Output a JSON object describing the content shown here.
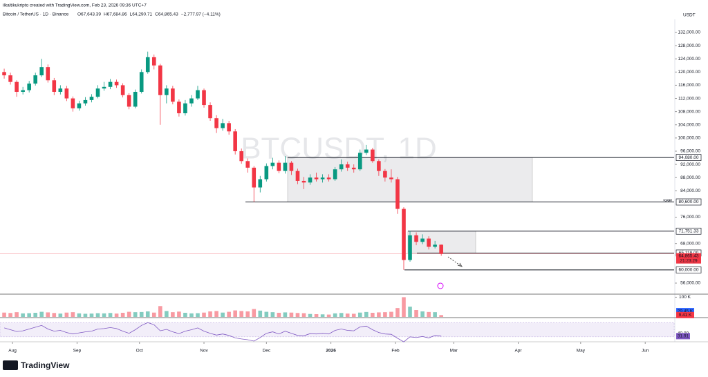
{
  "header": "ilkaltikukripto created with TradingView.com, Feb 23, 2026 09:36 UTC+7",
  "logo": "TradingView",
  "chart_data": {
    "type": "candlestick",
    "title": "Bitcoin / TetherUS · 1D · Binance",
    "ohlc_labels": [
      "O67,643.39",
      "H67,684.86",
      "L64,290.71",
      "C64,865.43",
      "−2,777.97 (−4.11%)"
    ],
    "watermark": "BTCUSDT, 1D",
    "currency": "USDT",
    "up_color": "#089981",
    "down_color": "#f23645",
    "open": [
      120000,
      119000,
      117000,
      114000,
      114500,
      116500,
      119000,
      121500,
      117500,
      114000,
      115000,
      112000,
      109000,
      110500,
      111500,
      112500,
      115000,
      115500,
      117000,
      116000,
      113000,
      109500,
      114000,
      120000,
      124500,
      122000,
      113000,
      115000,
      111000,
      107500,
      110500,
      112000,
      114500,
      110000,
      106000,
      103000,
      104500,
      102000,
      96000,
      93000,
      91000,
      85000,
      87500,
      91500,
      92500,
      90000,
      92500,
      90000,
      87000,
      86500,
      88000,
      87500,
      88000,
      87500,
      90500,
      92000,
      91000,
      90500,
      95500,
      96500,
      93000,
      90000,
      88000,
      87500,
      78500,
      63000,
      70500,
      68500,
      69500,
      67000,
      67643.39
    ],
    "high": [
      121000,
      119800,
      117500,
      115500,
      117300,
      119800,
      124000,
      122300,
      118200,
      116000,
      115800,
      112600,
      111300,
      112400,
      113300,
      116000,
      117000,
      117900,
      117700,
      116600,
      113600,
      114700,
      120800,
      126200,
      125300,
      122500,
      116000,
      115800,
      111700,
      111500,
      113000,
      115800,
      115000,
      110800,
      106900,
      105800,
      105200,
      102700,
      96800,
      93800,
      91500,
      88500,
      92300,
      94000,
      93200,
      94500,
      93000,
      90700,
      88200,
      89000,
      89500,
      89000,
      89000,
      91200,
      93500,
      92800,
      92000,
      96500,
      97900,
      97000,
      93500,
      90600,
      90500,
      88200,
      79000,
      71800,
      71400,
      70800,
      70200,
      68800,
      67684.86
    ],
    "low": [
      118000,
      116200,
      112500,
      113200,
      113800,
      115900,
      118500,
      116800,
      113000,
      113200,
      111200,
      108000,
      108300,
      109800,
      110800,
      112000,
      114300,
      114800,
      115200,
      112300,
      108700,
      109000,
      113500,
      119500,
      120800,
      104000,
      110500,
      110200,
      106500,
      106800,
      109500,
      111500,
      109200,
      105200,
      101500,
      102200,
      101000,
      95000,
      92200,
      89500,
      80600,
      83500,
      86800,
      90500,
      89300,
      89200,
      88800,
      86000,
      84500,
      85800,
      86800,
      86500,
      86800,
      87000,
      89800,
      90000,
      89500,
      90000,
      94800,
      92500,
      88500,
      86800,
      86500,
      77000,
      60000,
      62500,
      67500,
      67800,
      66200,
      66500,
      64290.71
    ],
    "close": [
      119000,
      117000,
      114000,
      114500,
      116500,
      119000,
      121500,
      117500,
      114000,
      115000,
      112000,
      109000,
      110500,
      111500,
      112500,
      115000,
      115500,
      117000,
      116000,
      113000,
      109500,
      114000,
      120000,
      124500,
      122000,
      113000,
      115000,
      111000,
      107500,
      110500,
      112000,
      114500,
      110000,
      106000,
      103000,
      104500,
      102000,
      96000,
      93000,
      91000,
      85000,
      87500,
      91500,
      92500,
      90000,
      92500,
      90000,
      87000,
      86500,
      88000,
      87500,
      88000,
      87500,
      90500,
      92000,
      91000,
      90500,
      95500,
      96500,
      93000,
      90000,
      88000,
      87500,
      78500,
      63000,
      70500,
      68500,
      69500,
      67000,
      67643.39,
      64865.43
    ],
    "xlim": [
      -0.67,
      107.3
    ],
    "xticks": [
      {
        "value": 1.33,
        "label": "Aug"
      },
      {
        "value": 11.67,
        "label": "Sep"
      },
      {
        "value": 21.67,
        "label": "Oct"
      },
      {
        "value": 32,
        "label": "Nov"
      },
      {
        "value": 42,
        "label": "Dec"
      },
      {
        "value": 52.33,
        "label": "2026"
      },
      {
        "value": 62.67,
        "label": "Feb"
      },
      {
        "value": 72,
        "label": "Mar"
      },
      {
        "value": 82.33,
        "label": "Apr"
      },
      {
        "value": 92.33,
        "label": "May"
      },
      {
        "value": 102.67,
        "label": "Jun"
      }
    ],
    "ylim": [
      52860,
      135980
    ],
    "yticks": [
      {
        "value": 132000,
        "label": "132,000.00"
      },
      {
        "value": 128000,
        "label": "128,000.00"
      },
      {
        "value": 124000,
        "label": "124,000.00"
      },
      {
        "value": 120000,
        "label": "120,000.00"
      },
      {
        "value": 116000,
        "label": "116,000.00"
      },
      {
        "value": 112000,
        "label": "112,000.00"
      },
      {
        "value": 108000,
        "label": "108,000.00"
      },
      {
        "value": 104000,
        "label": "104,000.00"
      },
      {
        "value": 100000,
        "label": "100,000.00"
      },
      {
        "value": 96000,
        "label": "96,000.00"
      },
      {
        "value": 92000,
        "label": "92,000.00"
      },
      {
        "value": 88000,
        "label": "88,000.00"
      },
      {
        "value": 84000,
        "label": "84,000.00"
      },
      {
        "value": 76000,
        "label": "76,000.00"
      },
      {
        "value": 68000,
        "label": "68,000.00"
      },
      {
        "value": 56000,
        "label": "56,000.00"
      }
    ],
    "levels": [
      {
        "value": 94080,
        "label": "94,080.00"
      },
      {
        "value": 80600,
        "label": "80,600.00",
        "note": "SBR"
      },
      {
        "value": 71751.33,
        "label": "71,751.33"
      },
      {
        "value": 65118,
        "label": "65,118.00"
      },
      {
        "value": 60000,
        "label": "60,000.00"
      }
    ],
    "current_price": {
      "value": 64865.43,
      "label": "64,865.43",
      "countdown": "21:23:29",
      "color": "#f23645"
    },
    "volume": {
      "values": [
        22000,
        20000,
        24000,
        18000,
        19000,
        21000,
        26000,
        23000,
        20000,
        17000,
        22000,
        24000,
        18000,
        16000,
        17000,
        19000,
        18000,
        20000,
        17000,
        21000,
        26000,
        24000,
        25000,
        28000,
        22000,
        55000,
        30000,
        24000,
        27000,
        21000,
        18000,
        19000,
        22000,
        28000,
        30000,
        22000,
        26000,
        33000,
        30000,
        28000,
        40000,
        32000,
        26000,
        24000,
        21000,
        23000,
        22000,
        20000,
        19000,
        15000,
        14000,
        13000,
        12000,
        18000,
        20000,
        17000,
        16000,
        22000,
        25000,
        21000,
        23000,
        24000,
        26000,
        45000,
        100000,
        52000,
        35000,
        28000,
        25000,
        24000,
        9410
      ],
      "ylim": [
        0,
        105000
      ],
      "yticks": [
        {
          "value": 100000,
          "label": "100 K"
        }
      ],
      "labels": [
        {
          "value": 29450,
          "label": "29.45 K",
          "color": "#2962ff"
        },
        {
          "value": 9410,
          "label": "9.41 K",
          "color": "#f23645"
        }
      ]
    },
    "rsi": {
      "values": [
        55,
        50,
        45,
        47,
        52,
        57,
        62,
        52,
        46,
        48,
        42,
        38,
        41,
        44,
        46,
        52,
        53,
        56,
        53,
        46,
        40,
        50,
        62,
        70,
        64,
        47,
        51,
        44,
        39,
        46,
        50,
        55,
        46,
        40,
        35,
        38,
        34,
        27,
        24,
        22,
        18,
        28,
        40,
        44,
        38,
        46,
        40,
        34,
        33,
        39,
        38,
        40,
        38,
        48,
        52,
        48,
        47,
        58,
        60,
        50,
        42,
        38,
        37,
        26,
        16,
        30,
        28,
        31,
        27,
        34,
        31.91
      ],
      "ylim": [
        20,
        80
      ],
      "band": [
        30,
        70
      ],
      "color": "#7e57c2",
      "labels": [
        {
          "value": 40,
          "label": "40.00"
        },
        {
          "value": 31.91,
          "label": "31.91"
        }
      ]
    }
  }
}
